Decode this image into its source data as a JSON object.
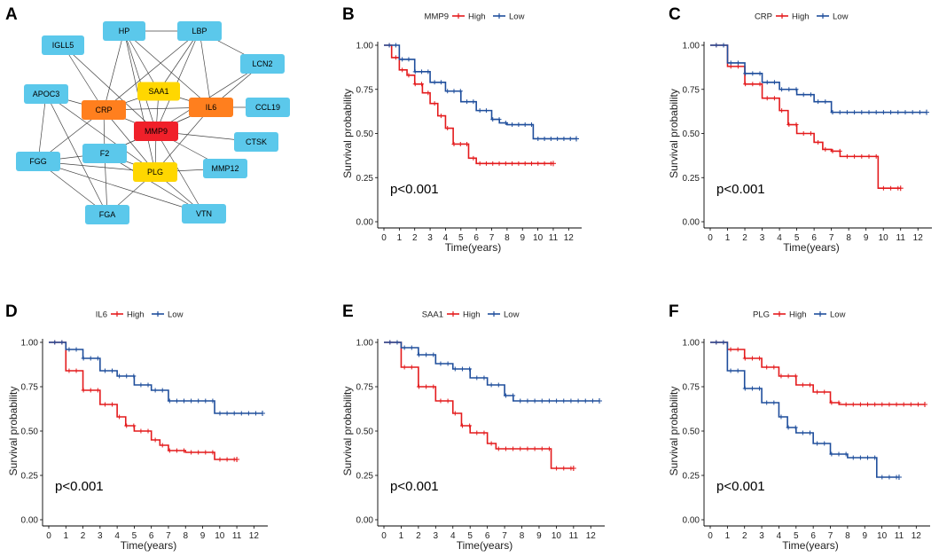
{
  "figure": {
    "panel_letters": [
      "A",
      "B",
      "C",
      "D",
      "E",
      "F"
    ]
  },
  "network": {
    "nodes": [
      {
        "id": "HP",
        "label": "HP",
        "color": "#5BC8EB"
      },
      {
        "id": "LBP",
        "label": "LBP",
        "color": "#5BC8EB"
      },
      {
        "id": "IGLL5",
        "label": "IGLL5",
        "color": "#5BC8EB"
      },
      {
        "id": "LCN2",
        "label": "LCN2",
        "color": "#5BC8EB"
      },
      {
        "id": "SAA1",
        "label": "SAA1",
        "color": "#FFD700"
      },
      {
        "id": "APOC3",
        "label": "APOC3",
        "color": "#5BC8EB"
      },
      {
        "id": "CRP",
        "label": "CRP",
        "color": "#FF7F1E"
      },
      {
        "id": "IL6",
        "label": "IL6",
        "color": "#FF7F1E"
      },
      {
        "id": "CCL19",
        "label": "CCL19",
        "color": "#5BC8EB"
      },
      {
        "id": "MMP9",
        "label": "MMP9",
        "color": "#F0202A"
      },
      {
        "id": "CTSK",
        "label": "CTSK",
        "color": "#5BC8EB"
      },
      {
        "id": "F2",
        "label": "F2",
        "color": "#5BC8EB"
      },
      {
        "id": "FGG",
        "label": "FGG",
        "color": "#5BC8EB"
      },
      {
        "id": "PLG",
        "label": "PLG",
        "color": "#FFD700"
      },
      {
        "id": "MMP12",
        "label": "MMP12",
        "color": "#5BC8EB"
      },
      {
        "id": "FGA",
        "label": "FGA",
        "color": "#5BC8EB"
      },
      {
        "id": "VTN",
        "label": "VTN",
        "color": "#5BC8EB"
      }
    ],
    "edges": [
      [
        "HP",
        "LBP"
      ],
      [
        "HP",
        "SAA1"
      ],
      [
        "HP",
        "CRP"
      ],
      [
        "HP",
        "IL6"
      ],
      [
        "HP",
        "MMP9"
      ],
      [
        "HP",
        "PLG"
      ],
      [
        "LBP",
        "SAA1"
      ],
      [
        "LBP",
        "CRP"
      ],
      [
        "LBP",
        "IL6"
      ],
      [
        "LBP",
        "MMP9"
      ],
      [
        "LBP",
        "LCN2"
      ],
      [
        "IGLL5",
        "CRP"
      ],
      [
        "IGLL5",
        "MMP9"
      ],
      [
        "LCN2",
        "IL6"
      ],
      [
        "LCN2",
        "MMP9"
      ],
      [
        "APOC3",
        "CRP"
      ],
      [
        "APOC3",
        "PLG"
      ],
      [
        "APOC3",
        "FGG"
      ],
      [
        "APOC3",
        "FGA"
      ],
      [
        "SAA1",
        "CRP"
      ],
      [
        "SAA1",
        "IL6"
      ],
      [
        "SAA1",
        "MMP9"
      ],
      [
        "CRP",
        "IL6"
      ],
      [
        "CRP",
        "MMP9"
      ],
      [
        "CRP",
        "F2"
      ],
      [
        "CRP",
        "FGG"
      ],
      [
        "CRP",
        "PLG"
      ],
      [
        "IL6",
        "MMP9"
      ],
      [
        "IL6",
        "CCL19"
      ],
      [
        "IL6",
        "PLG"
      ],
      [
        "IL6",
        "F2"
      ],
      [
        "MMP9",
        "CTSK"
      ],
      [
        "MMP9",
        "PLG"
      ],
      [
        "MMP9",
        "F2"
      ],
      [
        "MMP9",
        "MMP12"
      ],
      [
        "MMP9",
        "VTN"
      ],
      [
        "F2",
        "FGG"
      ],
      [
        "F2",
        "PLG"
      ],
      [
        "F2",
        "FGA"
      ],
      [
        "F2",
        "VTN"
      ],
      [
        "FGG",
        "PLG"
      ],
      [
        "FGG",
        "FGA"
      ],
      [
        "FGG",
        "VTN"
      ],
      [
        "PLG",
        "FGA"
      ],
      [
        "PLG",
        "VTN"
      ],
      [
        "PLG",
        "MMP12"
      ]
    ]
  },
  "chart_data": [
    {
      "panel": "B",
      "type": "line",
      "title": "",
      "legend_title": "MMP9",
      "legend": [
        "High",
        "Low"
      ],
      "series": [
        {
          "name": "High",
          "color": "#E41A1C",
          "x": [
            0,
            0.5,
            1,
            1.5,
            2,
            2.5,
            3,
            3.5,
            4,
            4.5,
            5,
            5.5,
            6,
            7,
            8,
            9,
            10,
            11
          ],
          "y": [
            1.0,
            0.93,
            0.86,
            0.83,
            0.78,
            0.73,
            0.67,
            0.6,
            0.53,
            0.44,
            0.44,
            0.36,
            0.33,
            0.33,
            0.33,
            0.33,
            0.33,
            0.33
          ]
        },
        {
          "name": "Low",
          "color": "#1F4E9C",
          "x": [
            0,
            1,
            2,
            3,
            4,
            5,
            6,
            7,
            7.5,
            8,
            9,
            9.7,
            10,
            11,
            12.5
          ],
          "y": [
            1.0,
            0.92,
            0.85,
            0.79,
            0.74,
            0.68,
            0.63,
            0.58,
            0.56,
            0.55,
            0.55,
            0.47,
            0.47,
            0.47,
            0.47
          ]
        }
      ],
      "pvalue": "p<0.001",
      "xlabel": "Time(years)",
      "ylabel": "Survival probability",
      "xticks": [
        "0",
        "1",
        "2",
        "3",
        "4",
        "5",
        "6",
        "7",
        "8",
        "9",
        "10",
        "11",
        "12"
      ],
      "yticks": [
        "0.00",
        "0.25",
        "0.50",
        "0.75",
        "1.00"
      ],
      "xlim": [
        0,
        12.5
      ],
      "ylim": [
        0,
        1
      ]
    },
    {
      "panel": "C",
      "type": "line",
      "title": "",
      "legend_title": "CRP",
      "legend": [
        "High",
        "Low"
      ],
      "series": [
        {
          "name": "High",
          "color": "#E41A1C",
          "x": [
            0,
            1,
            2,
            3,
            4,
            4.5,
            5,
            6,
            6.5,
            7,
            7.5,
            8,
            9,
            9.7,
            10,
            11
          ],
          "y": [
            1.0,
            0.88,
            0.78,
            0.7,
            0.63,
            0.55,
            0.5,
            0.45,
            0.41,
            0.4,
            0.37,
            0.37,
            0.37,
            0.19,
            0.19,
            0.19
          ]
        },
        {
          "name": "Low",
          "color": "#1F4E9C",
          "x": [
            0,
            1,
            2,
            3,
            4,
            5,
            6,
            7,
            8,
            9,
            10,
            11,
            12.5
          ],
          "y": [
            1.0,
            0.9,
            0.84,
            0.79,
            0.75,
            0.72,
            0.68,
            0.62,
            0.62,
            0.62,
            0.62,
            0.62,
            0.62
          ]
        }
      ],
      "pvalue": "p<0.001",
      "xlabel": "Time(years)",
      "ylabel": "Survival probability",
      "xticks": [
        "0",
        "1",
        "2",
        "3",
        "4",
        "5",
        "6",
        "7",
        "8",
        "9",
        "10",
        "11",
        "12"
      ],
      "yticks": [
        "0.00",
        "0.25",
        "0.50",
        "0.75",
        "1.00"
      ],
      "xlim": [
        0,
        12.5
      ],
      "ylim": [
        0,
        1
      ]
    },
    {
      "panel": "D",
      "type": "line",
      "title": "",
      "legend_title": "IL6",
      "legend": [
        "High",
        "Low"
      ],
      "series": [
        {
          "name": "High",
          "color": "#E41A1C",
          "x": [
            0,
            1,
            2,
            3,
            4,
            4.5,
            5,
            6,
            6.5,
            7,
            8,
            9,
            9.7,
            10,
            11
          ],
          "y": [
            1.0,
            0.84,
            0.73,
            0.65,
            0.58,
            0.53,
            0.5,
            0.45,
            0.42,
            0.39,
            0.38,
            0.38,
            0.34,
            0.34,
            0.34
          ]
        },
        {
          "name": "Low",
          "color": "#1F4E9C",
          "x": [
            0,
            1,
            2,
            3,
            4,
            5,
            6,
            7,
            8,
            9,
            9.7,
            10,
            11,
            12.5
          ],
          "y": [
            1.0,
            0.96,
            0.91,
            0.84,
            0.81,
            0.76,
            0.73,
            0.67,
            0.67,
            0.67,
            0.6,
            0.6,
            0.6,
            0.6
          ]
        }
      ],
      "pvalue": "p<0.001",
      "xlabel": "Time(years)",
      "ylabel": "Survival probability",
      "xticks": [
        "0",
        "1",
        "2",
        "3",
        "4",
        "5",
        "6",
        "7",
        "8",
        "9",
        "10",
        "11",
        "12"
      ],
      "yticks": [
        "0.00",
        "0.25",
        "0.50",
        "0.75",
        "1.00"
      ],
      "xlim": [
        0,
        12.5
      ],
      "ylim": [
        0,
        1
      ]
    },
    {
      "panel": "E",
      "type": "line",
      "title": "",
      "legend_title": "SAA1",
      "legend": [
        "High",
        "Low"
      ],
      "series": [
        {
          "name": "High",
          "color": "#E41A1C",
          "x": [
            0,
            1,
            2,
            3,
            4,
            4.5,
            5,
            6,
            6.5,
            7,
            8,
            9,
            9.7,
            10,
            11
          ],
          "y": [
            1.0,
            0.86,
            0.75,
            0.67,
            0.6,
            0.53,
            0.49,
            0.43,
            0.4,
            0.4,
            0.4,
            0.4,
            0.29,
            0.29,
            0.29
          ]
        },
        {
          "name": "Low",
          "color": "#1F4E9C",
          "x": [
            0,
            1,
            2,
            3,
            4,
            5,
            6,
            7,
            7.5,
            8,
            9,
            10,
            11,
            12.5
          ],
          "y": [
            1.0,
            0.97,
            0.93,
            0.88,
            0.85,
            0.8,
            0.76,
            0.7,
            0.67,
            0.67,
            0.67,
            0.67,
            0.67,
            0.67
          ]
        }
      ],
      "pvalue": "p<0.001",
      "xlabel": "Time(years)",
      "ylabel": "Survival probability",
      "xticks": [
        "0",
        "1",
        "2",
        "3",
        "4",
        "5",
        "6",
        "7",
        "8",
        "9",
        "10",
        "11",
        "12"
      ],
      "yticks": [
        "0.00",
        "0.25",
        "0.50",
        "0.75",
        "1.00"
      ],
      "xlim": [
        0,
        12.5
      ],
      "ylim": [
        0,
        1
      ]
    },
    {
      "panel": "F",
      "type": "line",
      "title": "",
      "legend_title": "PLG",
      "legend": [
        "High",
        "Low"
      ],
      "series": [
        {
          "name": "High",
          "color": "#E41A1C",
          "x": [
            0,
            1,
            2,
            3,
            4,
            5,
            6,
            7,
            7.5,
            8,
            9,
            10,
            11,
            12.5
          ],
          "y": [
            1.0,
            0.96,
            0.91,
            0.86,
            0.81,
            0.76,
            0.72,
            0.66,
            0.65,
            0.65,
            0.65,
            0.65,
            0.65,
            0.65
          ]
        },
        {
          "name": "Low",
          "color": "#1F4E9C",
          "x": [
            0,
            1,
            2,
            3,
            4,
            4.5,
            5,
            6,
            7,
            8,
            9,
            9.7,
            10,
            11
          ],
          "y": [
            1.0,
            0.84,
            0.74,
            0.66,
            0.58,
            0.52,
            0.49,
            0.43,
            0.37,
            0.35,
            0.35,
            0.24,
            0.24,
            0.24
          ]
        }
      ],
      "pvalue": "p<0.001",
      "xlabel": "Time(years)",
      "ylabel": "Survival probability",
      "xticks": [
        "0",
        "1",
        "2",
        "3",
        "4",
        "5",
        "6",
        "7",
        "8",
        "9",
        "10",
        "11",
        "12"
      ],
      "yticks": [
        "0.00",
        "0.25",
        "0.50",
        "0.75",
        "1.00"
      ],
      "xlim": [
        0,
        12.5
      ],
      "ylim": [
        0,
        1
      ]
    }
  ]
}
